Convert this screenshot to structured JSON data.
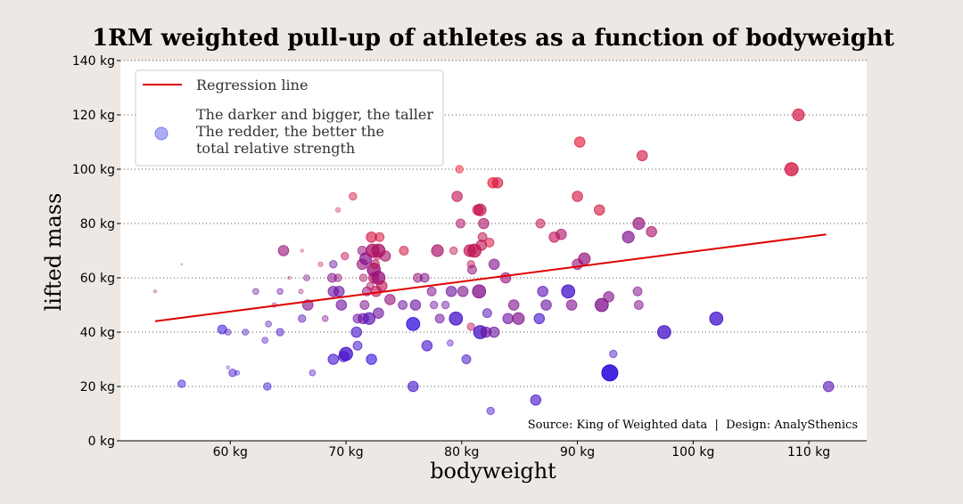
{
  "chart_data": {
    "type": "scatter",
    "title": "1RM weighted pull-up of athletes as a function of bodyweight",
    "xlabel": "bodyweight",
    "ylabel": "lifted mass",
    "xlim": [
      50.5,
      115
    ],
    "ylim": [
      0,
      140
    ],
    "x_ticks": [
      60,
      70,
      80,
      90,
      100,
      110
    ],
    "x_tick_labels": [
      "60 kg",
      "70 kg",
      "80 kg",
      "90 kg",
      "100 kg",
      "110 kg"
    ],
    "y_ticks": [
      0,
      20,
      40,
      60,
      80,
      100,
      120,
      140
    ],
    "y_tick_labels": [
      "0 kg",
      "20 kg",
      "40 kg",
      "60 kg",
      "80 kg",
      "100 kg",
      "120 kg",
      "140 kg"
    ],
    "grid": "horizontal dotted",
    "legend_position": "top-left",
    "legend": {
      "regression_label": "Regression line",
      "points_label_lines": [
        "The darker and bigger, the taller",
        "The redder, the better the",
        "total relative strength"
      ]
    },
    "source_text": "Source: King of Weighted data  |  Design: AnalySthenics",
    "regression_line": {
      "x": [
        53.5,
        111.5
      ],
      "y": [
        44,
        76
      ]
    },
    "colors": {
      "background": "#ede8e4",
      "plot_area": "#ffffff",
      "regression": "#e00000",
      "strong": "#e8102a",
      "weak": "#1a10f0"
    },
    "points_note": "each point: x bodyweight (kg), y lifted mass (kg), h = relative height 0-1 (size/darkness), s = relative strength 0-1 (redness)",
    "points": [
      {
        "x": 53.5,
        "y": 55,
        "h": 0.1,
        "s": 0.6
      },
      {
        "x": 55.8,
        "y": 21,
        "h": 0.4,
        "s": 0.1
      },
      {
        "x": 55.8,
        "y": 65,
        "h": 0.0,
        "s": 0.9
      },
      {
        "x": 59.3,
        "y": 41,
        "h": 0.5,
        "s": 0.1
      },
      {
        "x": 59.8,
        "y": 40,
        "h": 0.3,
        "s": 0.3
      },
      {
        "x": 59.8,
        "y": 27,
        "h": 0.1,
        "s": 0.2
      },
      {
        "x": 60.2,
        "y": 25,
        "h": 0.4,
        "s": 0.2
      },
      {
        "x": 60.6,
        "y": 25,
        "h": 0.2,
        "s": 0.1
      },
      {
        "x": 61.3,
        "y": 40,
        "h": 0.3,
        "s": 0.2
      },
      {
        "x": 62.2,
        "y": 55,
        "h": 0.3,
        "s": 0.4
      },
      {
        "x": 63.2,
        "y": 20,
        "h": 0.4,
        "s": 0.1
      },
      {
        "x": 63.0,
        "y": 37,
        "h": 0.3,
        "s": 0.2
      },
      {
        "x": 63.3,
        "y": 43,
        "h": 0.3,
        "s": 0.3
      },
      {
        "x": 63.8,
        "y": 50,
        "h": 0.2,
        "s": 0.6
      },
      {
        "x": 64.3,
        "y": 55,
        "h": 0.3,
        "s": 0.4
      },
      {
        "x": 64.6,
        "y": 70,
        "h": 0.6,
        "s": 0.6
      },
      {
        "x": 64.3,
        "y": 40,
        "h": 0.4,
        "s": 0.2
      },
      {
        "x": 65.1,
        "y": 60,
        "h": 0.1,
        "s": 0.7
      },
      {
        "x": 66.2,
        "y": 70,
        "h": 0.1,
        "s": 0.8
      },
      {
        "x": 66.1,
        "y": 55,
        "h": 0.2,
        "s": 0.6
      },
      {
        "x": 66.2,
        "y": 45,
        "h": 0.4,
        "s": 0.3
      },
      {
        "x": 66.6,
        "y": 60,
        "h": 0.3,
        "s": 0.5
      },
      {
        "x": 66.7,
        "y": 50,
        "h": 0.6,
        "s": 0.5
      },
      {
        "x": 67.1,
        "y": 25,
        "h": 0.3,
        "s": 0.2
      },
      {
        "x": 67.8,
        "y": 65,
        "h": 0.2,
        "s": 0.8
      },
      {
        "x": 68.2,
        "y": 45,
        "h": 0.3,
        "s": 0.5
      },
      {
        "x": 68.8,
        "y": 60,
        "h": 0.5,
        "s": 0.5
      },
      {
        "x": 68.9,
        "y": 65,
        "h": 0.4,
        "s": 0.4
      },
      {
        "x": 68.9,
        "y": 55,
        "h": 0.6,
        "s": 0.4
      },
      {
        "x": 68.9,
        "y": 30,
        "h": 0.6,
        "s": 0.2
      },
      {
        "x": 69.3,
        "y": 60,
        "h": 0.4,
        "s": 0.6
      },
      {
        "x": 69.3,
        "y": 85,
        "h": 0.2,
        "s": 0.9
      },
      {
        "x": 69.4,
        "y": 55,
        "h": 0.6,
        "s": 0.4
      },
      {
        "x": 69.6,
        "y": 50,
        "h": 0.6,
        "s": 0.4
      },
      {
        "x": 69.9,
        "y": 68,
        "h": 0.4,
        "s": 0.8
      },
      {
        "x": 69.8,
        "y": 31,
        "h": 0.6,
        "s": 0.2
      },
      {
        "x": 70.0,
        "y": 32,
        "h": 0.8,
        "s": 0.2
      },
      {
        "x": 70.6,
        "y": 90,
        "h": 0.4,
        "s": 0.9
      },
      {
        "x": 70.9,
        "y": 40,
        "h": 0.6,
        "s": 0.2
      },
      {
        "x": 71.0,
        "y": 45,
        "h": 0.5,
        "s": 0.4
      },
      {
        "x": 71.0,
        "y": 35,
        "h": 0.5,
        "s": 0.2
      },
      {
        "x": 71.4,
        "y": 70,
        "h": 0.5,
        "s": 0.6
      },
      {
        "x": 71.4,
        "y": 65,
        "h": 0.6,
        "s": 0.6
      },
      {
        "x": 71.5,
        "y": 45,
        "h": 0.6,
        "s": 0.4
      },
      {
        "x": 71.5,
        "y": 60,
        "h": 0.4,
        "s": 0.7
      },
      {
        "x": 71.6,
        "y": 50,
        "h": 0.5,
        "s": 0.5
      },
      {
        "x": 71.7,
        "y": 67,
        "h": 0.7,
        "s": 0.5
      },
      {
        "x": 71.8,
        "y": 55,
        "h": 0.5,
        "s": 0.6
      },
      {
        "x": 72.0,
        "y": 45,
        "h": 0.7,
        "s": 0.3
      },
      {
        "x": 72.1,
        "y": 57,
        "h": 0.4,
        "s": 0.7
      },
      {
        "x": 72.2,
        "y": 75,
        "h": 0.6,
        "s": 0.9
      },
      {
        "x": 72.2,
        "y": 30,
        "h": 0.6,
        "s": 0.1
      },
      {
        "x": 72.3,
        "y": 70,
        "h": 0.8,
        "s": 0.7
      },
      {
        "x": 72.4,
        "y": 60,
        "h": 0.6,
        "s": 0.8
      },
      {
        "x": 72.4,
        "y": 63,
        "h": 0.8,
        "s": 0.6
      },
      {
        "x": 72.5,
        "y": 65,
        "h": 0.5,
        "s": 0.8
      },
      {
        "x": 72.6,
        "y": 55,
        "h": 0.6,
        "s": 0.8
      },
      {
        "x": 72.7,
        "y": 68,
        "h": 0.4,
        "s": 0.8
      },
      {
        "x": 72.8,
        "y": 70,
        "h": 0.8,
        "s": 0.7
      },
      {
        "x": 72.8,
        "y": 60,
        "h": 0.8,
        "s": 0.6
      },
      {
        "x": 72.8,
        "y": 47,
        "h": 0.6,
        "s": 0.4
      },
      {
        "x": 72.9,
        "y": 75,
        "h": 0.5,
        "s": 0.9
      },
      {
        "x": 73.1,
        "y": 57,
        "h": 0.6,
        "s": 0.8
      },
      {
        "x": 73.4,
        "y": 68,
        "h": 0.6,
        "s": 0.7
      },
      {
        "x": 73.8,
        "y": 52,
        "h": 0.6,
        "s": 0.6
      },
      {
        "x": 74.9,
        "y": 50,
        "h": 0.5,
        "s": 0.4
      },
      {
        "x": 75.0,
        "y": 70,
        "h": 0.5,
        "s": 0.9
      },
      {
        "x": 75.8,
        "y": 43,
        "h": 0.8,
        "s": 0.1
      },
      {
        "x": 75.8,
        "y": 20,
        "h": 0.6,
        "s": 0.2
      },
      {
        "x": 76.0,
        "y": 50,
        "h": 0.6,
        "s": 0.4
      },
      {
        "x": 76.2,
        "y": 60,
        "h": 0.5,
        "s": 0.6
      },
      {
        "x": 76.8,
        "y": 60,
        "h": 0.5,
        "s": 0.5
      },
      {
        "x": 77.0,
        "y": 35,
        "h": 0.6,
        "s": 0.2
      },
      {
        "x": 77.4,
        "y": 55,
        "h": 0.5,
        "s": 0.5
      },
      {
        "x": 77.6,
        "y": 50,
        "h": 0.4,
        "s": 0.4
      },
      {
        "x": 77.9,
        "y": 70,
        "h": 0.7,
        "s": 0.7
      },
      {
        "x": 78.1,
        "y": 45,
        "h": 0.5,
        "s": 0.4
      },
      {
        "x": 78.6,
        "y": 50,
        "h": 0.4,
        "s": 0.4
      },
      {
        "x": 79.0,
        "y": 36,
        "h": 0.3,
        "s": 0.3
      },
      {
        "x": 79.1,
        "y": 55,
        "h": 0.6,
        "s": 0.4
      },
      {
        "x": 79.3,
        "y": 70,
        "h": 0.4,
        "s": 0.8
      },
      {
        "x": 79.5,
        "y": 45,
        "h": 0.8,
        "s": 0.2
      },
      {
        "x": 79.6,
        "y": 90,
        "h": 0.6,
        "s": 0.8
      },
      {
        "x": 79.8,
        "y": 100,
        "h": 0.4,
        "s": 1.0
      },
      {
        "x": 79.9,
        "y": 80,
        "h": 0.5,
        "s": 0.7
      },
      {
        "x": 80.1,
        "y": 55,
        "h": 0.6,
        "s": 0.5
      },
      {
        "x": 80.4,
        "y": 30,
        "h": 0.5,
        "s": 0.2
      },
      {
        "x": 80.7,
        "y": 70,
        "h": 0.7,
        "s": 0.8
      },
      {
        "x": 80.8,
        "y": 42,
        "h": 0.4,
        "s": 0.8
      },
      {
        "x": 80.8,
        "y": 65,
        "h": 0.4,
        "s": 0.8
      },
      {
        "x": 80.9,
        "y": 63,
        "h": 0.5,
        "s": 0.6
      },
      {
        "x": 81.1,
        "y": 70,
        "h": 0.8,
        "s": 0.8
      },
      {
        "x": 81.4,
        "y": 85,
        "h": 0.6,
        "s": 0.9
      },
      {
        "x": 81.5,
        "y": 55,
        "h": 0.8,
        "s": 0.5
      },
      {
        "x": 81.6,
        "y": 85,
        "h": 0.7,
        "s": 0.8
      },
      {
        "x": 81.6,
        "y": 40,
        "h": 0.8,
        "s": 0.2
      },
      {
        "x": 81.7,
        "y": 72,
        "h": 0.6,
        "s": 0.8
      },
      {
        "x": 81.8,
        "y": 75,
        "h": 0.5,
        "s": 0.8
      },
      {
        "x": 81.9,
        "y": 80,
        "h": 0.6,
        "s": 0.7
      },
      {
        "x": 82.1,
        "y": 40,
        "h": 0.6,
        "s": 0.4
      },
      {
        "x": 82.2,
        "y": 47,
        "h": 0.5,
        "s": 0.3
      },
      {
        "x": 82.4,
        "y": 73,
        "h": 0.5,
        "s": 0.9
      },
      {
        "x": 82.5,
        "y": 11,
        "h": 0.4,
        "s": 0.2
      },
      {
        "x": 82.7,
        "y": 95,
        "h": 0.6,
        "s": 1.0
      },
      {
        "x": 82.8,
        "y": 65,
        "h": 0.6,
        "s": 0.5
      },
      {
        "x": 82.8,
        "y": 40,
        "h": 0.6,
        "s": 0.4
      },
      {
        "x": 83.1,
        "y": 95,
        "h": 0.6,
        "s": 0.9
      },
      {
        "x": 83.8,
        "y": 60,
        "h": 0.6,
        "s": 0.6
      },
      {
        "x": 84.0,
        "y": 45,
        "h": 0.6,
        "s": 0.4
      },
      {
        "x": 84.5,
        "y": 50,
        "h": 0.6,
        "s": 0.5
      },
      {
        "x": 84.9,
        "y": 45,
        "h": 0.7,
        "s": 0.5
      },
      {
        "x": 86.4,
        "y": 15,
        "h": 0.6,
        "s": 0.2
      },
      {
        "x": 86.7,
        "y": 45,
        "h": 0.6,
        "s": 0.2
      },
      {
        "x": 86.8,
        "y": 80,
        "h": 0.5,
        "s": 0.8
      },
      {
        "x": 87.0,
        "y": 55,
        "h": 0.6,
        "s": 0.3
      },
      {
        "x": 87.3,
        "y": 50,
        "h": 0.6,
        "s": 0.4
      },
      {
        "x": 88.0,
        "y": 75,
        "h": 0.6,
        "s": 0.8
      },
      {
        "x": 88.6,
        "y": 76,
        "h": 0.6,
        "s": 0.7
      },
      {
        "x": 89.2,
        "y": 55,
        "h": 0.8,
        "s": 0.2
      },
      {
        "x": 89.5,
        "y": 50,
        "h": 0.6,
        "s": 0.5
      },
      {
        "x": 90.0,
        "y": 65,
        "h": 0.6,
        "s": 0.6
      },
      {
        "x": 90.0,
        "y": 90,
        "h": 0.6,
        "s": 0.9
      },
      {
        "x": 90.2,
        "y": 110,
        "h": 0.6,
        "s": 1.0
      },
      {
        "x": 90.6,
        "y": 67,
        "h": 0.7,
        "s": 0.6
      },
      {
        "x": 91.9,
        "y": 85,
        "h": 0.6,
        "s": 0.9
      },
      {
        "x": 92.1,
        "y": 50,
        "h": 0.8,
        "s": 0.5
      },
      {
        "x": 92.7,
        "y": 53,
        "h": 0.6,
        "s": 0.5
      },
      {
        "x": 92.8,
        "y": 25,
        "h": 1.0,
        "s": 0.1
      },
      {
        "x": 93.1,
        "y": 32,
        "h": 0.4,
        "s": 0.2
      },
      {
        "x": 94.4,
        "y": 75,
        "h": 0.7,
        "s": 0.5
      },
      {
        "x": 95.2,
        "y": 55,
        "h": 0.5,
        "s": 0.5
      },
      {
        "x": 95.3,
        "y": 80,
        "h": 0.7,
        "s": 0.6
      },
      {
        "x": 95.3,
        "y": 50,
        "h": 0.5,
        "s": 0.5
      },
      {
        "x": 95.6,
        "y": 105,
        "h": 0.6,
        "s": 0.9
      },
      {
        "x": 96.4,
        "y": 77,
        "h": 0.6,
        "s": 0.7
      },
      {
        "x": 97.5,
        "y": 40,
        "h": 0.8,
        "s": 0.2
      },
      {
        "x": 102.0,
        "y": 45,
        "h": 0.8,
        "s": 0.2
      },
      {
        "x": 108.5,
        "y": 100,
        "h": 0.8,
        "s": 0.9
      },
      {
        "x": 109.1,
        "y": 120,
        "h": 0.7,
        "s": 0.9
      },
      {
        "x": 111.7,
        "y": 20,
        "h": 0.6,
        "s": 0.3
      }
    ]
  }
}
